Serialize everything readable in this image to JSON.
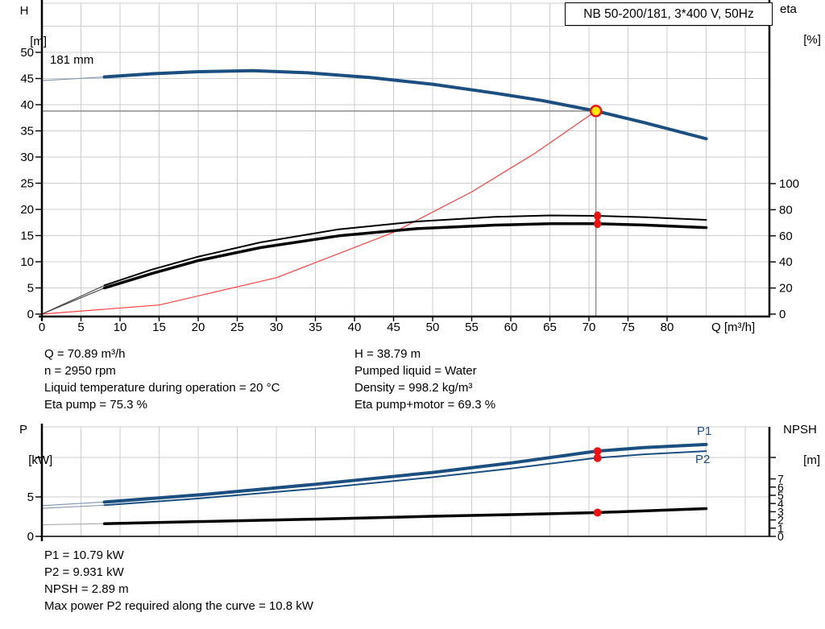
{
  "title_box": {
    "label": "NB 50-200/181, 3*400 V, 50Hz"
  },
  "axis_titles": {
    "top_left_1": "H",
    "top_left_2": "[m]",
    "top_right_1": "eta",
    "top_right_2": "[%]",
    "bottom_left_1": "P",
    "bottom_left_2": "[kW]",
    "bottom_right_1": "NPSH",
    "bottom_right_2": "[m]",
    "x_axis": "Q [m³/h]"
  },
  "curve_labels": {
    "impeller": "181 mm",
    "p1": "P1",
    "p2": "P2"
  },
  "info_block_1": {
    "left": [
      "Q = 70.89 m³/h",
      "n = 2950 rpm",
      "Liquid temperature during operation = 20 °C",
      "Eta pump = 75.3 %"
    ],
    "right": [
      "H = 38.79 m",
      "Pumped liquid = Water",
      "Density = 998.2 kg/m³",
      "Eta pump+motor = 69.3 %"
    ]
  },
  "info_block_2": {
    "lines": [
      "P1 = 10.79 kW",
      "P2 = 9.931 kW",
      "NPSH = 2.89 m",
      "Max power P2 required along the curve = 10.8 kW"
    ]
  },
  "colors": {
    "curve_blue": "#1b4f7f",
    "curve_blue_thin": "#7e95ae",
    "curve_black": "#000000",
    "curve_black_thin": "#444444",
    "npsh_thin": "#aaaaaa",
    "system_red": "#ff4040",
    "marker_red": "#ee1111",
    "duty_yellow": "#ffec00",
    "grid": "#cdcdcd",
    "guide": "#8c8c8c",
    "axis": "#000000"
  },
  "chart_data": [
    {
      "type": "line",
      "name": "performance-chart",
      "title": "NB 50-200/181, 3*400 V, 50Hz",
      "x_axis": {
        "label": "Q [m³/h]",
        "min": 0,
        "max": 93,
        "grid_step": 5,
        "labeled_ticks": [
          0,
          5,
          10,
          15,
          20,
          25,
          30,
          35,
          40,
          45,
          50,
          55,
          60,
          65,
          70,
          75,
          80
        ]
      },
      "y_left": {
        "label": "H [m]",
        "min": 0,
        "max": 59,
        "grid_step": 5,
        "labeled_ticks": [
          0,
          5,
          10,
          15,
          20,
          25,
          30,
          35,
          40,
          45,
          50
        ],
        "grid_max": 55
      },
      "y_right": {
        "label": "eta [%]",
        "min": 0,
        "labeled_ticks": [
          0,
          20,
          40,
          60,
          80,
          100
        ]
      },
      "series": [
        {
          "name": "head-curve-181mm",
          "label": "181 mm",
          "axis": "h",
          "width": 4,
          "thin_until": 8,
          "color_key": "curve_blue",
          "thin_color_key": "curve_blue_thin",
          "points": [
            [
              0,
              44.6
            ],
            [
              8,
              45.3
            ],
            [
              14,
              45.9
            ],
            [
              20,
              46.3
            ],
            [
              27,
              46.5
            ],
            [
              34,
              46.1
            ],
            [
              42,
              45.2
            ],
            [
              50,
              43.9
            ],
            [
              58,
              42.2
            ],
            [
              64,
              40.8
            ],
            [
              70.89,
              38.79
            ],
            [
              77,
              36.6
            ],
            [
              85,
              33.5
            ]
          ]
        },
        {
          "name": "system-curve",
          "axis": "h",
          "width": 1.2,
          "color_key": "system_red",
          "points": [
            [
              0,
              0
            ],
            [
              15,
              1.74
            ],
            [
              30,
              6.95
            ],
            [
              45,
              15.63
            ],
            [
              55,
              23.35
            ],
            [
              63,
              30.64
            ],
            [
              70.89,
              38.79
            ]
          ]
        },
        {
          "name": "eta-pump-curve",
          "axis": "e",
          "width": 2,
          "thin_until": 8,
          "color_key": "curve_black",
          "thin_color_key": "curve_black_thin",
          "points": [
            [
              0,
              0
            ],
            [
              8,
              22
            ],
            [
              14,
              34
            ],
            [
              20,
              44
            ],
            [
              28,
              55
            ],
            [
              38,
              65
            ],
            [
              48,
              71
            ],
            [
              58,
              74.5
            ],
            [
              65,
              75.6
            ],
            [
              70.89,
              75.3
            ],
            [
              77,
              74.3
            ],
            [
              85,
              72.2
            ]
          ]
        },
        {
          "name": "eta-pump-motor-curve",
          "axis": "e",
          "width": 3.5,
          "thin_until": 8,
          "color_key": "curve_black",
          "thin_color_key": "curve_black_thin",
          "points": [
            [
              0,
              0
            ],
            [
              8,
              20
            ],
            [
              14,
              31
            ],
            [
              20,
              41
            ],
            [
              28,
              51
            ],
            [
              38,
              60
            ],
            [
              48,
              65.5
            ],
            [
              58,
              68.2
            ],
            [
              65,
              69.3
            ],
            [
              70.89,
              69.3
            ],
            [
              77,
              68.3
            ],
            [
              85,
              66.3
            ]
          ]
        }
      ],
      "duty_point": {
        "q": 70.89,
        "h": 38.79,
        "eta_pump": 75.3,
        "eta_pump_motor": 69.3
      },
      "guides": {
        "vline_q": 70.89,
        "hline_h": 38.79
      }
    },
    {
      "type": "line",
      "name": "power-npsh-chart",
      "x_axis": {
        "min": 0,
        "max": 93,
        "grid_step": 5,
        "labeled_ticks": []
      },
      "y_left": {
        "label": "P [kW]",
        "min": 0,
        "labeled_ticks": [
          0,
          5
        ],
        "unlabeled_ticks": [
          10
        ],
        "grid_lines": [
          5,
          10
        ]
      },
      "y_right": {
        "label": "NPSH [m]",
        "min": 0,
        "labeled_ticks": [
          0,
          1,
          2,
          3,
          4,
          5,
          6,
          7
        ]
      },
      "series": [
        {
          "name": "p1-curve",
          "label": "P1",
          "axis": "p",
          "width": 4,
          "thin_until": 8,
          "color_key": "curve_blue",
          "thin_color_key": "curve_blue_thin",
          "points": [
            [
              0,
              3.9
            ],
            [
              8,
              4.35
            ],
            [
              20,
              5.25
            ],
            [
              35,
              6.6
            ],
            [
              50,
              8.1
            ],
            [
              60,
              9.3
            ],
            [
              70.89,
              10.79
            ],
            [
              77,
              11.25
            ],
            [
              85,
              11.65
            ]
          ]
        },
        {
          "name": "p2-curve",
          "label": "P2",
          "axis": "p",
          "width": 2,
          "thin_until": 8,
          "color_key": "curve_blue",
          "thin_color_key": "curve_blue_thin",
          "points": [
            [
              0,
              3.55
            ],
            [
              8,
              3.95
            ],
            [
              20,
              4.8
            ],
            [
              35,
              6.05
            ],
            [
              50,
              7.5
            ],
            [
              60,
              8.6
            ],
            [
              70.89,
              9.931
            ],
            [
              77,
              10.4
            ],
            [
              85,
              10.8
            ]
          ]
        },
        {
          "name": "npsh-curve",
          "axis": "n",
          "width": 3.5,
          "thin_until": 8,
          "color_key": "curve_black",
          "thin_color_key": "npsh_thin",
          "points": [
            [
              0,
              1.42
            ],
            [
              8,
              1.55
            ],
            [
              20,
              1.8
            ],
            [
              35,
              2.1
            ],
            [
              50,
              2.45
            ],
            [
              60,
              2.65
            ],
            [
              70.89,
              2.89
            ],
            [
              85,
              3.38
            ]
          ]
        }
      ],
      "duty_point": {
        "q": 70.89,
        "p1": 10.79,
        "p2": 9.931,
        "npsh": 2.89
      }
    }
  ]
}
